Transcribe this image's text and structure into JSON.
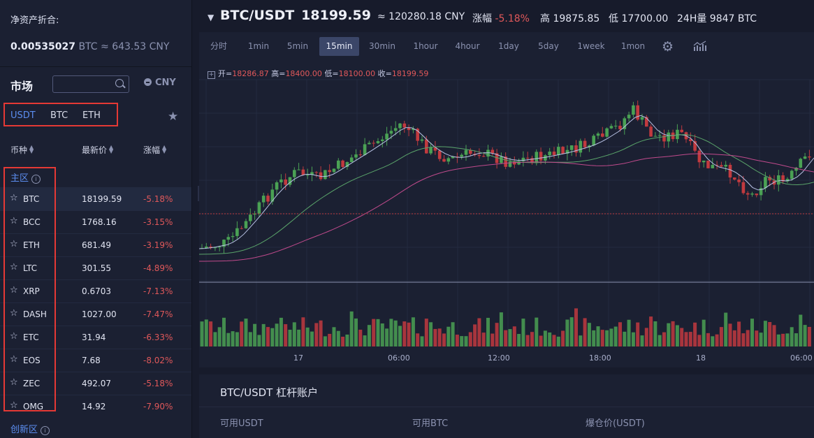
{
  "asset": {
    "title": "净资产折合:",
    "btc_amount": "0.00535027",
    "btc_unit": "BTC ≈ 643.53 CNY"
  },
  "market": {
    "title": "市场",
    "search_placeholder": "",
    "currency_toggle": "CNY",
    "tabs": [
      "USDT",
      "BTC",
      "ETH"
    ],
    "active_tab": "USDT",
    "columns": [
      "币种",
      "最新价",
      "涨幅"
    ],
    "main_zone": "主区",
    "new_zone": "创新区",
    "rows": [
      {
        "symbol": "BTC",
        "price": "18199.59",
        "change": "-5.18%"
      },
      {
        "symbol": "BCC",
        "price": "1768.16",
        "change": "-3.15%"
      },
      {
        "symbol": "ETH",
        "price": "681.49",
        "change": "-3.19%"
      },
      {
        "symbol": "LTC",
        "price": "301.55",
        "change": "-4.89%"
      },
      {
        "symbol": "XRP",
        "price": "0.6703",
        "change": "-7.13%"
      },
      {
        "symbol": "DASH",
        "price": "1027.00",
        "change": "-7.47%"
      },
      {
        "symbol": "ETC",
        "price": "31.94",
        "change": "-6.33%"
      },
      {
        "symbol": "EOS",
        "price": "7.68",
        "change": "-8.02%"
      },
      {
        "symbol": "ZEC",
        "price": "492.07",
        "change": "-5.18%"
      },
      {
        "symbol": "OMG",
        "price": "14.92",
        "change": "-7.90%"
      }
    ]
  },
  "ticker": {
    "pair": "BTC/USDT",
    "last_price": "18199.59",
    "cny": "≈ 120280.18 CNY",
    "change_label": "涨幅",
    "change": "-5.18%",
    "high_label": "高",
    "high": "19875.85",
    "low_label": "低",
    "low": "17700.00",
    "vol_label": "24H量",
    "vol": "9847 BTC"
  },
  "timeframes": [
    "分时",
    "1min",
    "5min",
    "15min",
    "30min",
    "1hour",
    "4hour",
    "1day",
    "5day",
    "1week",
    "1mon"
  ],
  "active_timeframe": "15min",
  "ohlc": {
    "open_label": "开=",
    "open": "18286.87",
    "high_label": "高=",
    "high": "18400.00",
    "low_label": "低=",
    "low": "18100.00",
    "close_label": "收=",
    "close": "18199.59"
  },
  "x_axis_labels": [
    "17",
    "06:00",
    "12:00",
    "18:00",
    "18",
    "06:00"
  ],
  "colors": {
    "up": "#4aa154",
    "down": "#c13a3f",
    "accent": "#5b8def",
    "negative_text": "#e0585a"
  },
  "margin": {
    "title": "BTC/USDT 杠杆账户",
    "labels": [
      "可用USDT",
      "可用BTC",
      "爆仓价(USDT)"
    ]
  }
}
